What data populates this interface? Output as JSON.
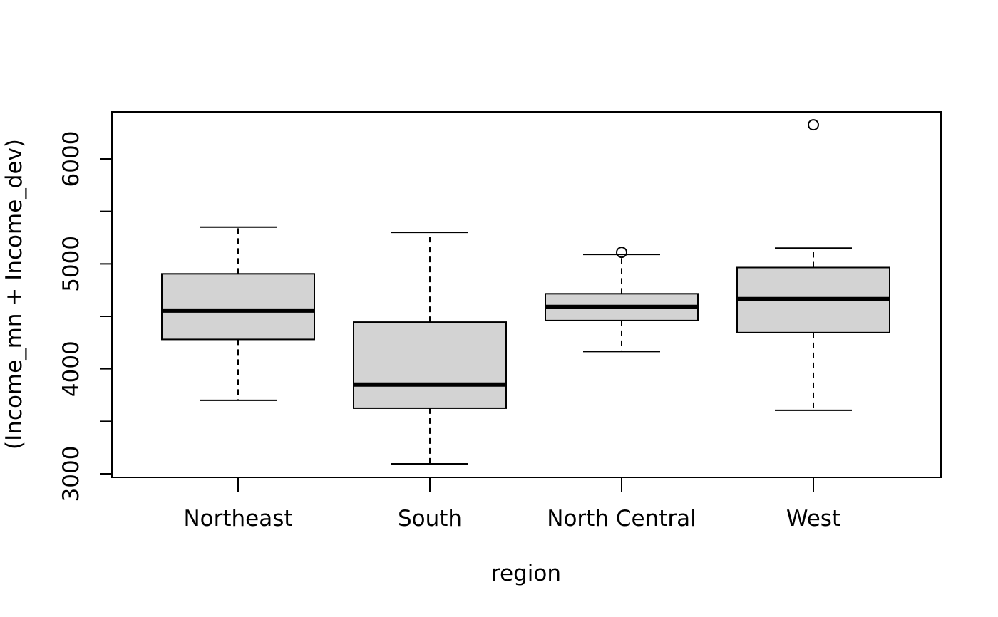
{
  "chart_data": {
    "type": "boxplot",
    "title": "",
    "xlabel": "region",
    "ylabel": "(Income_mn + Income_dev)",
    "ylim": [
      2940,
      6400
    ],
    "y_ticks": [
      3000,
      3500,
      4000,
      4500,
      5000,
      5500,
      6000
    ],
    "y_tick_labels": [
      "3000",
      "4000",
      "5000",
      "6000"
    ],
    "y_tick_label_values": [
      3000,
      4000,
      5000,
      6000
    ],
    "categories": [
      "Northeast",
      "South",
      "North Central",
      "West"
    ],
    "boxes": [
      {
        "category": "Northeast",
        "whisker_low": 3700,
        "q1": 4280,
        "median": 4555,
        "q3": 4905,
        "whisker_high": 5350,
        "outliers": []
      },
      {
        "category": "South",
        "whisker_low": 3095,
        "q1": 3625,
        "median": 3850,
        "q3": 4445,
        "whisker_high": 5300,
        "outliers": []
      },
      {
        "category": "North Central",
        "whisker_low": 4165,
        "q1": 4460,
        "median": 4590,
        "q3": 4715,
        "whisker_high": 5090,
        "outliers": [
          5110
        ]
      },
      {
        "category": "West",
        "whisker_low": 3605,
        "q1": 4345,
        "median": 4665,
        "q3": 4965,
        "whisker_high": 5150,
        "outliers": [
          6325
        ]
      }
    ],
    "colors": {
      "box_fill": "#d3d3d3",
      "stroke": "#000000",
      "median": "#000000"
    },
    "grid": false,
    "legend": "none"
  }
}
